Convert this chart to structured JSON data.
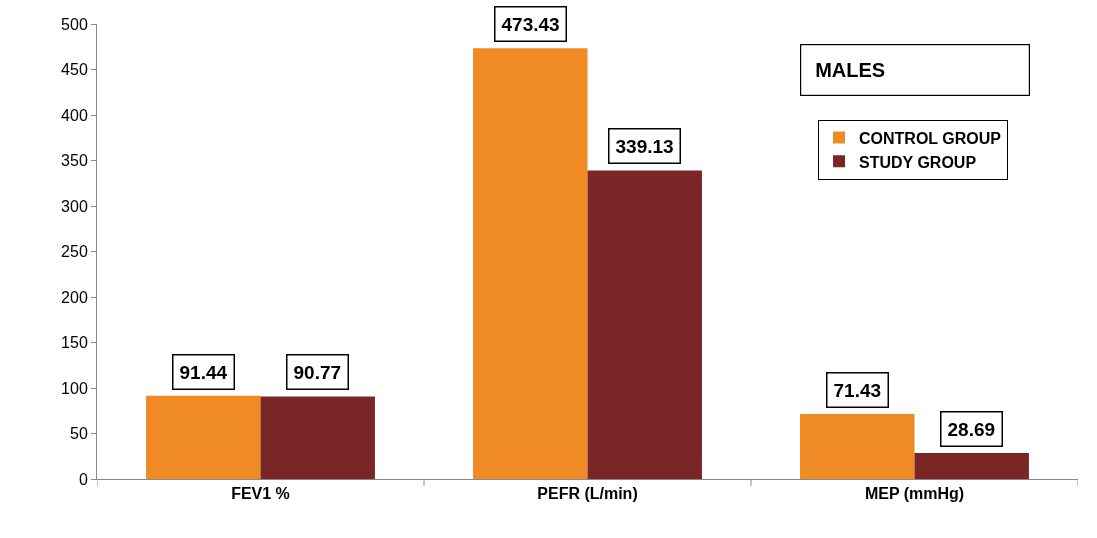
{
  "chart_data": {
    "type": "bar",
    "title": "MALES",
    "categories": [
      "FEV1 %",
      "PEFR (L/min)",
      "MEP (mmHg)"
    ],
    "series": [
      {
        "name": "CONTROL GROUP",
        "color": "#f08a24",
        "values": [
          91.44,
          473.43,
          71.43
        ]
      },
      {
        "name": "STUDY GROUP",
        "color": "#7a2626",
        "values": [
          90.77,
          339.13,
          28.69
        ]
      }
    ],
    "ylim": [
      0,
      500
    ],
    "yticks": [
      0,
      50,
      100,
      150,
      200,
      250,
      300,
      350,
      400,
      450,
      500
    ],
    "grid": false,
    "legend": "top right",
    "data_labels": true
  }
}
